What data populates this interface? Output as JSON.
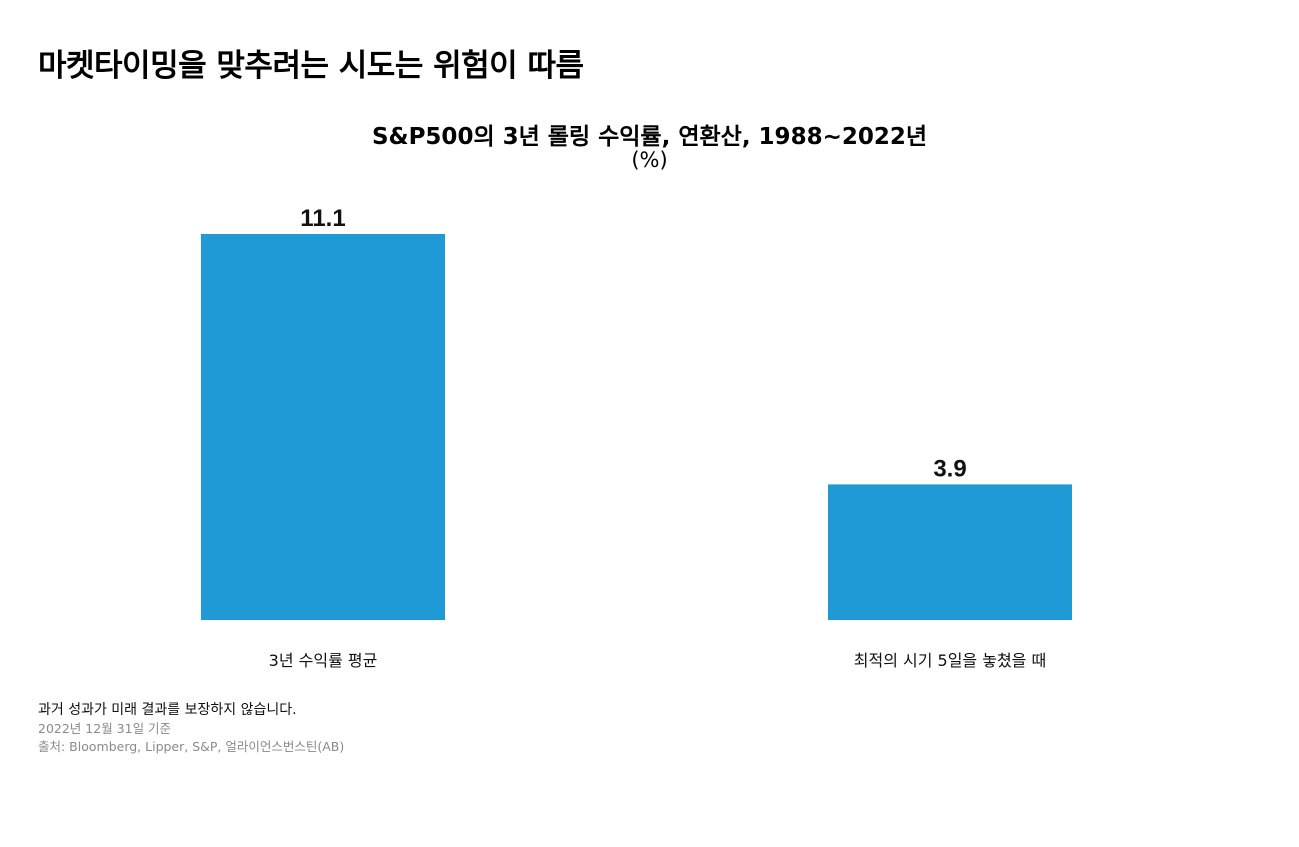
{
  "headline": "마켓타이밍을 맞추려는 시도는 위험이 따름",
  "chart_data": {
    "type": "bar",
    "title": "S&P500의 3년 롤링 수익률, 연환산, 1988~2022년",
    "unit": "(%)",
    "categories": [
      "3년 수익률 평균",
      "최적의 시기 5일을 놓쳤을 때"
    ],
    "values": [
      11.1,
      3.9
    ],
    "data_labels": [
      "11.1",
      "3.9"
    ],
    "bar_color": "#1f9ad6",
    "ylim": [
      0,
      11.1
    ],
    "grid": false,
    "legend": "none"
  },
  "notes": {
    "disclaimer": "과거 성과가 미래 결과를 보장하지 않습니다.",
    "as_of": "2022년 12월 31일 기준",
    "source": "출처: Bloomberg, Lipper, S&P, 얼라이언스번스틴(AB)"
  }
}
